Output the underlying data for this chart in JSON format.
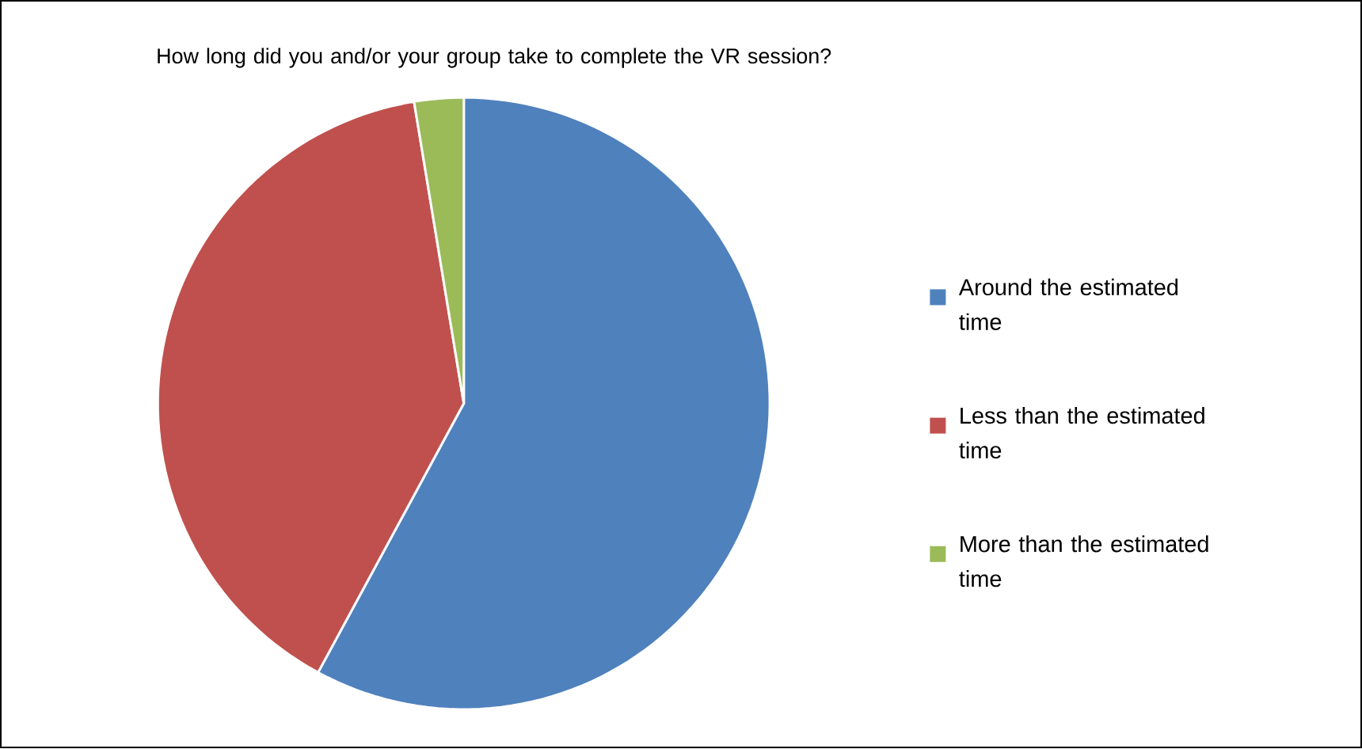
{
  "chart_data": {
    "type": "pie",
    "title": "How long did you and/or your group take to complete the VR session?",
    "categories": [
      "Around the estimated time",
      "Less than the estimated time",
      "More than the estimated time"
    ],
    "values": [
      57.9,
      39.5,
      2.6
    ],
    "colors": [
      "#4f81bd",
      "#c0504d",
      "#9bbb59"
    ],
    "legend": "right"
  }
}
